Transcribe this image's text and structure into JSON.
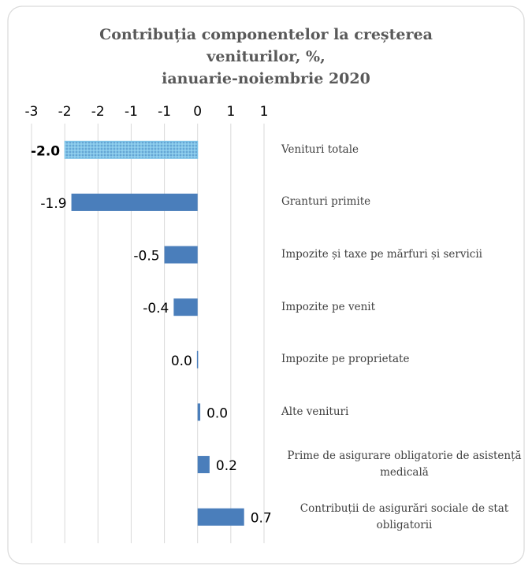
{
  "chart_data": {
    "type": "hbar",
    "title": "Contribuția componentelor la creșterea\nveniturilor, %,\nianuarie-noiembrie 2020",
    "categories": [
      "Venituri totale",
      "Granturi primite",
      "Impozite și taxe pe mărfuri și servicii",
      "Impozite pe venit",
      "Impozite pe proprietate",
      "Alte venituri",
      "Prime de asigurare obligatorie de asistență medicală",
      "Contribuții de asigurări sociale de stat obligatorii"
    ],
    "values": [
      -2.0,
      -1.9,
      -0.5,
      -0.36,
      -0.01,
      0.04,
      0.18,
      0.7
    ],
    "value_labels": [
      "-2.0",
      "-1.9",
      "-0.5",
      "-0.4",
      "0.0",
      "0.0",
      "0.2",
      "0.7"
    ],
    "color": "#4a7ebb",
    "highlight_color": "#7fc4e8",
    "xlim": [
      -2.5,
      1
    ],
    "xticks": [
      {
        "value": -2.5,
        "label": "-3"
      },
      -2,
      {
        "value": -1.5,
        "label": "-2"
      },
      -1,
      {
        "value": -0.5,
        "label": "-1"
      },
      0,
      {
        "value": 0.5,
        "label": "1"
      },
      1
    ],
    "grid": true
  }
}
